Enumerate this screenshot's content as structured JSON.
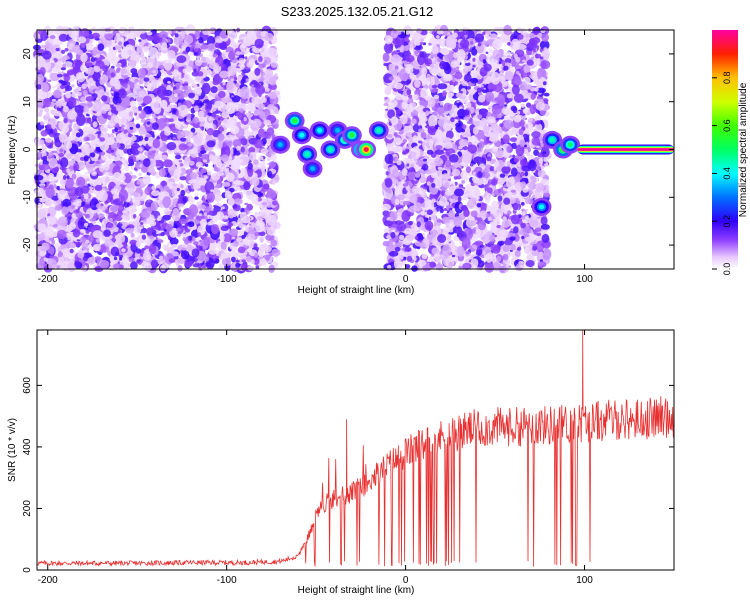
{
  "title": "S233.2025.132.05.21.G12",
  "colorbar": {
    "label": "Normalized spectral amplitude",
    "range": [
      0,
      1
    ],
    "ticks": [
      "0.0",
      "0.2",
      "0.4",
      "0.6",
      "0.8"
    ],
    "tick_values": [
      0,
      0.2,
      0.4,
      0.6,
      0.8
    ]
  },
  "chart_data": [
    {
      "type": "heatmap",
      "title": "S233.2025.132.05.21.G12",
      "xlabel": "Height of straight line (km)",
      "ylabel": "Frequency (Hz)",
      "xlim": [
        -206,
        150
      ],
      "ylim": [
        -25,
        25
      ],
      "xticks": [
        -200,
        -100,
        0,
        100
      ],
      "xtick_labels": [
        "-200",
        "-100",
        "0",
        "100"
      ],
      "yticks": [
        -20,
        -10,
        0,
        10,
        20
      ],
      "ytick_labels": [
        "-20",
        "-10",
        "0",
        "10",
        "20"
      ],
      "colormap": "rainbow (white to purple to blue to cyan to green to yellow to red to magenta)",
      "noise_regions_x": [
        [
          -206,
          -72
        ],
        [
          -11,
          79
        ]
      ],
      "empty_regions_x": [
        [
          -72,
          -11
        ],
        [
          79,
          150
        ]
      ],
      "signal_blobs": [
        {
          "x": -70,
          "y": 1,
          "value": 0.35
        },
        {
          "x": -62,
          "y": 6,
          "value": 0.55
        },
        {
          "x": -58,
          "y": 3,
          "value": 0.4
        },
        {
          "x": -55,
          "y": -1,
          "value": 0.45
        },
        {
          "x": -52,
          "y": -4,
          "value": 0.35
        },
        {
          "x": -48,
          "y": 4,
          "value": 0.4
        },
        {
          "x": -42,
          "y": 0,
          "value": 0.45
        },
        {
          "x": -38,
          "y": 4,
          "value": 0.35
        },
        {
          "x": -34,
          "y": 2,
          "value": 0.5
        },
        {
          "x": -30,
          "y": 3,
          "value": 0.55
        },
        {
          "x": -25,
          "y": 0,
          "value": 0.7
        },
        {
          "x": -22,
          "y": 0,
          "value": 0.95
        },
        {
          "x": -15,
          "y": 4,
          "value": 0.45
        },
        {
          "x": 76,
          "y": -12,
          "value": 0.4
        },
        {
          "x": 82,
          "y": 2,
          "value": 0.45
        },
        {
          "x": 88,
          "y": 0,
          "value": 0.6
        },
        {
          "x": 92,
          "y": 1,
          "value": 0.5
        }
      ],
      "signal_band": {
        "x_start": 96,
        "x_end": 150,
        "y": 0,
        "peak_value": 1.0
      }
    },
    {
      "type": "line",
      "xlabel": "Height of straight line (km)",
      "ylabel": "SNR (10 * v/v)",
      "xlim": [
        -206,
        150
      ],
      "ylim": [
        0,
        780
      ],
      "xticks": [
        -200,
        -100,
        0,
        100
      ],
      "xtick_labels": [
        "-200",
        "-100",
        "0",
        "100"
      ],
      "yticks": [
        0,
        200,
        400,
        600
      ],
      "ytick_labels": [
        "0",
        "200",
        "400",
        "600"
      ],
      "color": "#e83030",
      "x": [
        -206,
        -180,
        -150,
        -120,
        -90,
        -70,
        -60,
        -55,
        -50,
        -45,
        -40,
        -35,
        -30,
        -20,
        -10,
        0,
        10,
        20,
        30,
        40,
        50,
        60,
        70,
        80,
        90,
        100,
        110,
        120,
        130,
        140,
        150
      ],
      "y": [
        22,
        22,
        22,
        24,
        24,
        28,
        45,
        100,
        180,
        220,
        230,
        240,
        250,
        290,
        340,
        380,
        410,
        430,
        450,
        460,
        465,
        465,
        470,
        470,
        475,
        480,
        485,
        490,
        490,
        495,
        500
      ],
      "spikes": [
        {
          "x": -33,
          "y": 490
        },
        {
          "x": 99,
          "y": 780
        }
      ],
      "dropout_region_x": [
        [
          -60,
          40
        ],
        [
          68,
          105
        ]
      ]
    }
  ]
}
